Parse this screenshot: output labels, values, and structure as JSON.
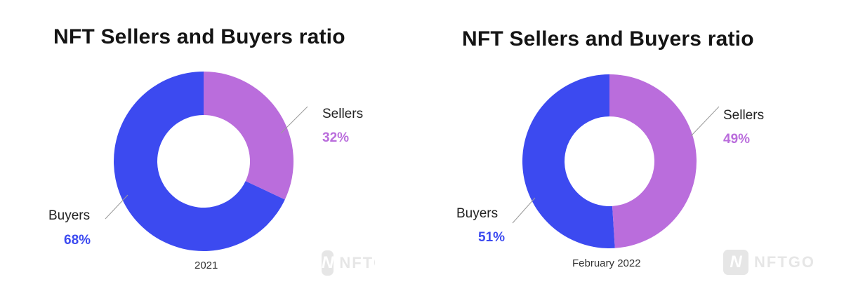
{
  "colors": {
    "buyers": "#3c4af0",
    "sellers": "#ba6ddc"
  },
  "watermark_text": "NFTGO",
  "chart_data": [
    {
      "type": "pie",
      "title": "NFT Sellers and Buyers ratio",
      "subtitle": "2021",
      "slices": [
        {
          "label": "Sellers",
          "value": 32,
          "display": "32%"
        },
        {
          "label": "Buyers",
          "value": 68,
          "display": "68%"
        }
      ]
    },
    {
      "type": "pie",
      "title": "NFT Sellers and Buyers ratio",
      "subtitle": "February 2022",
      "slices": [
        {
          "label": "Sellers",
          "value": 49,
          "display": "49%"
        },
        {
          "label": "Buyers",
          "value": 51,
          "display": "51%"
        }
      ]
    }
  ]
}
